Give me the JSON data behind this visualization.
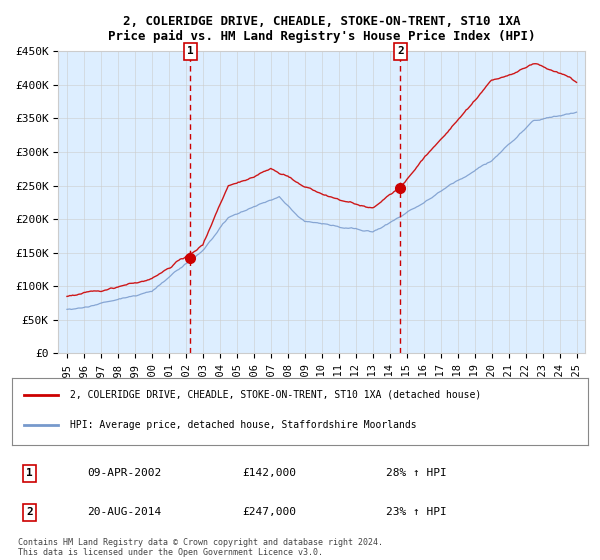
{
  "title": "2, COLERIDGE DRIVE, CHEADLE, STOKE-ON-TRENT, ST10 1XA",
  "subtitle": "Price paid vs. HM Land Registry's House Price Index (HPI)",
  "legend_line1": "2, COLERIDGE DRIVE, CHEADLE, STOKE-ON-TRENT, ST10 1XA (detached house)",
  "legend_line2": "HPI: Average price, detached house, Staffordshire Moorlands",
  "transaction1_date": "09-APR-2002",
  "transaction1_price": 142000,
  "transaction1_label": "28% ↑ HPI",
  "transaction2_date": "20-AUG-2014",
  "transaction2_price": 247000,
  "transaction2_label": "23% ↑ HPI",
  "footnote": "Contains HM Land Registry data © Crown copyright and database right 2024.\nThis data is licensed under the Open Government Licence v3.0.",
  "background_color": "#ffffff",
  "plot_bg_color": "#ddeeff",
  "red_line_color": "#cc0000",
  "blue_line_color": "#7799cc",
  "dashed_line_color": "#cc0000",
  "ylim": [
    0,
    450000
  ],
  "ytick_values": [
    0,
    50000,
    100000,
    150000,
    200000,
    250000,
    300000,
    350000,
    400000,
    450000
  ],
  "ytick_labels": [
    "£0",
    "£50K",
    "£100K",
    "£150K",
    "£200K",
    "£250K",
    "£300K",
    "£350K",
    "£400K",
    "£450K"
  ],
  "xtick_years": [
    1995,
    1996,
    1997,
    1998,
    1999,
    2000,
    2001,
    2002,
    2003,
    2004,
    2005,
    2006,
    2007,
    2008,
    2009,
    2010,
    2011,
    2012,
    2013,
    2014,
    2015,
    2016,
    2017,
    2018,
    2019,
    2020,
    2021,
    2022,
    2023,
    2024,
    2025
  ],
  "transaction1_x": 2002.27,
  "transaction2_x": 2014.63
}
